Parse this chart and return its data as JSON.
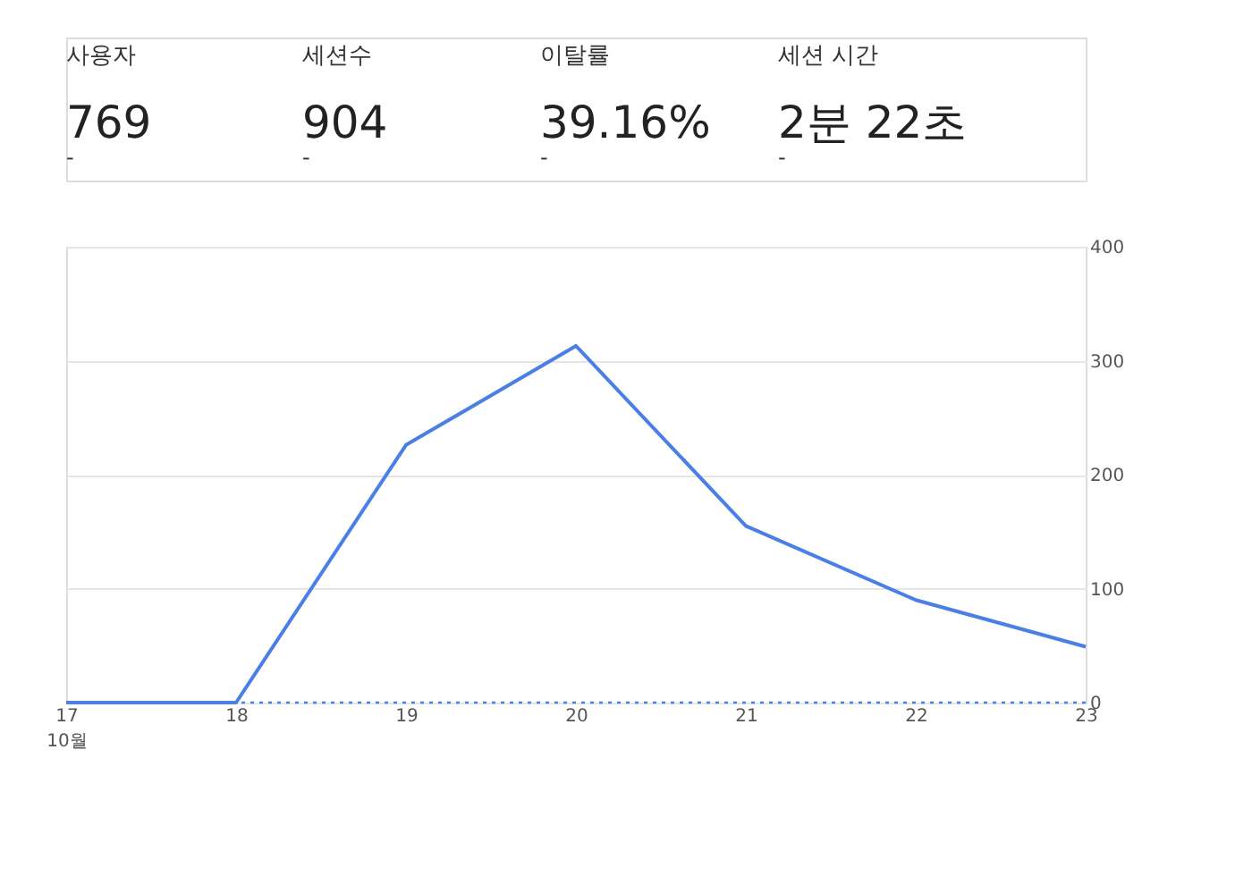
{
  "chart_data": {
    "type": "line",
    "annotations": [
      "사용자",
      "769",
      "-",
      "세션수",
      "904",
      "-",
      "이탈률",
      "39.16%",
      "-",
      "세션 시간",
      "2분 22초",
      "-"
    ],
    "categories": [
      "17\n10월",
      "18",
      "19",
      "20",
      "21",
      "22",
      "23"
    ],
    "series": [
      {
        "color": "#4a7fe6",
        "values": [
          0,
          0,
          226,
          313,
          155,
          90,
          49
        ]
      }
    ],
    "ylim": [
      0,
      400
    ],
    "yticks": [
      0,
      100,
      200,
      300,
      400
    ],
    "grid": "y",
    "marker": "none",
    "line_style": "solid",
    "ref_lines": [
      {
        "axis": "y",
        "value": 0,
        "color": "#4a7fe6",
        "line_style": "dotted"
      }
    ]
  }
}
